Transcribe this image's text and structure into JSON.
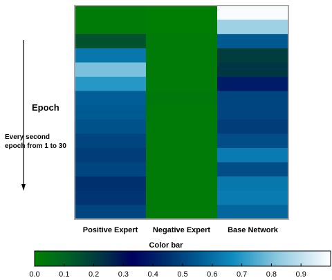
{
  "chart_data": {
    "type": "heatmap",
    "y_side_label": "Epoch",
    "y_side_note_line1": "Every second",
    "y_side_note_line2": "epoch from 1 to 30",
    "columns": [
      "Positive Expert",
      "Negative Expert",
      "Base Network"
    ],
    "rows": 15,
    "values": [
      [
        0.02,
        0.01,
        0.99
      ],
      [
        0.02,
        0.01,
        0.85
      ],
      [
        0.15,
        0.02,
        0.55
      ],
      [
        0.62,
        0.02,
        0.2
      ],
      [
        0.8,
        0.02,
        0.22
      ],
      [
        0.7,
        0.02,
        0.4
      ],
      [
        0.56,
        0.03,
        0.5
      ],
      [
        0.55,
        0.02,
        0.5
      ],
      [
        0.53,
        0.02,
        0.48
      ],
      [
        0.5,
        0.02,
        0.52
      ],
      [
        0.48,
        0.02,
        0.63
      ],
      [
        0.5,
        0.02,
        0.52
      ],
      [
        0.45,
        0.02,
        0.62
      ],
      [
        0.46,
        0.02,
        0.63
      ],
      [
        0.5,
        0.02,
        0.58
      ]
    ],
    "colorbar": {
      "title": "Color bar",
      "ticks": [
        "0.0",
        "0.1",
        "0.2",
        "0.3",
        "0.4",
        "0.5",
        "0.6",
        "0.7",
        "0.8",
        "0.9"
      ],
      "range": [
        0,
        1
      ],
      "colormap": [
        [
          0.0,
          "#008000"
        ],
        [
          0.1,
          "#006622"
        ],
        [
          0.25,
          "#002a4a"
        ],
        [
          0.33,
          "#00005f"
        ],
        [
          0.45,
          "#00306e"
        ],
        [
          0.55,
          "#005a92"
        ],
        [
          0.67,
          "#0e8cbf"
        ],
        [
          0.82,
          "#8cc8e0"
        ],
        [
          1.0,
          "#ffffff"
        ]
      ]
    }
  }
}
